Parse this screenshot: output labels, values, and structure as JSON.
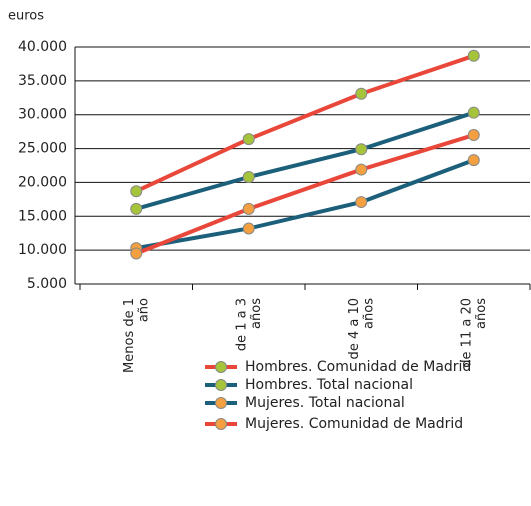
{
  "chart_data": {
    "type": "line",
    "y_label": "euros",
    "categories": [
      "Menos de 1 año",
      "de 1 a 3 años",
      "de 4 a 10 años",
      "de 11 a 20 años"
    ],
    "series": [
      {
        "name": "Hombres. Comunidad de Madrid",
        "color": "#e8473a",
        "marker_color": "#a5c43a",
        "values": [
          18700,
          26400,
          33100,
          38700
        ]
      },
      {
        "name": "Hombres. Total nacional",
        "color": "#1c5f7a",
        "marker_color": "#a5c43a",
        "values": [
          16100,
          20800,
          24900,
          30300
        ]
      },
      {
        "name": "Mujeres. Total nacional",
        "color": "#1c5f7a",
        "marker_color": "#f4a040",
        "values": [
          10300,
          13200,
          17100,
          23300
        ]
      },
      {
        "name": "Mujeres. Comunidad de Madrid",
        "color": "#e8473a",
        "marker_color": "#f4a040",
        "values": [
          9500,
          16100,
          21900,
          27000
        ]
      }
    ],
    "ylim": [
      5000,
      40000
    ],
    "yticks": [
      {
        "value": 5000,
        "label": "5.000"
      },
      {
        "value": 10000,
        "label": "10.000"
      },
      {
        "value": 15000,
        "label": "15.000"
      },
      {
        "value": 20000,
        "label": "20.000"
      },
      {
        "value": 25000,
        "label": "25.000"
      },
      {
        "value": 30000,
        "label": "30.000"
      },
      {
        "value": 35000,
        "label": "35.000"
      },
      {
        "value": 40000,
        "label": "40.000"
      }
    ],
    "grid": true
  }
}
